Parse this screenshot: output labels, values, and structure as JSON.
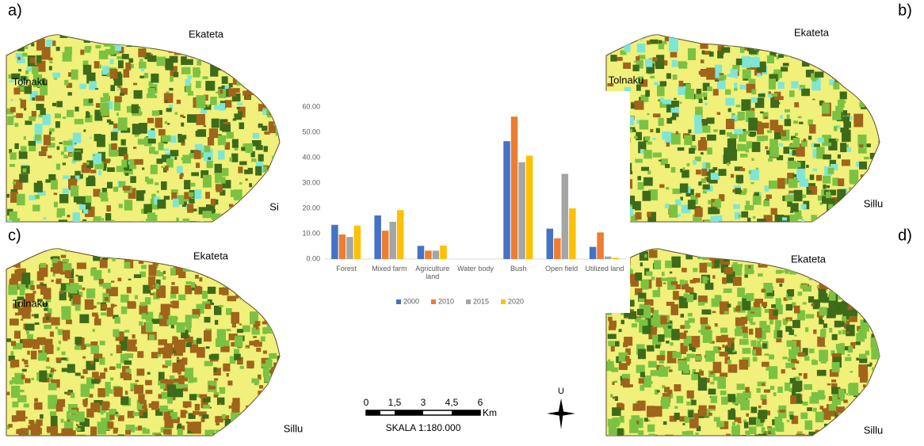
{
  "chart_data": {
    "type": "bar",
    "categories": [
      "Forest",
      "Mixed farm",
      "Agriculture land",
      "Water body",
      "Bush",
      "Open field",
      "Utilized land"
    ],
    "series": [
      {
        "name": "2000",
        "color": "#4472c4",
        "values": [
          13.5,
          17.2,
          5.2,
          0,
          46.5,
          12.0,
          4.8
        ]
      },
      {
        "name": "2010",
        "color": "#ed7d31",
        "values": [
          9.7,
          11.2,
          3.3,
          0,
          56.2,
          8.2,
          10.5
        ]
      },
      {
        "name": "2015",
        "color": "#a5a5a5",
        "values": [
          8.7,
          14.7,
          3.3,
          0,
          38.2,
          33.6,
          1.0
        ]
      },
      {
        "name": "2020",
        "color": "#ffc000",
        "values": [
          13.2,
          19.3,
          5.3,
          0,
          40.8,
          20.0,
          0.5
        ]
      }
    ],
    "ylim": [
      0,
      60
    ],
    "yticks": [
      {
        "value": 0,
        "label": "0.00"
      },
      {
        "value": 10,
        "label": "10.00"
      },
      {
        "value": 20,
        "label": "20.00"
      },
      {
        "value": 30,
        "label": "30.00"
      },
      {
        "value": 40,
        "label": "40.00"
      },
      {
        "value": 50,
        "label": "50.00"
      },
      {
        "value": 60,
        "label": "60.00"
      }
    ],
    "grid": false,
    "legend": "bottom"
  },
  "maps": [
    {
      "panel": "a)",
      "places": [
        "Ekateta",
        "Tolnaku",
        "Si"
      ]
    },
    {
      "panel": "b)",
      "places": [
        "Ekateta",
        "Tolnaku",
        "Sillu"
      ]
    },
    {
      "panel": "c)",
      "places": [
        "Ekateta",
        "Tolnaku",
        "Sillu"
      ]
    },
    {
      "panel": "d)",
      "places": [
        "Ekateta",
        "Sillu"
      ]
    }
  ],
  "scale": {
    "ticks": [
      "0",
      "1,5",
      "3",
      "4,5",
      "6"
    ],
    "unit": "Km",
    "text": "SKALA 1:180.000"
  },
  "north": "U"
}
